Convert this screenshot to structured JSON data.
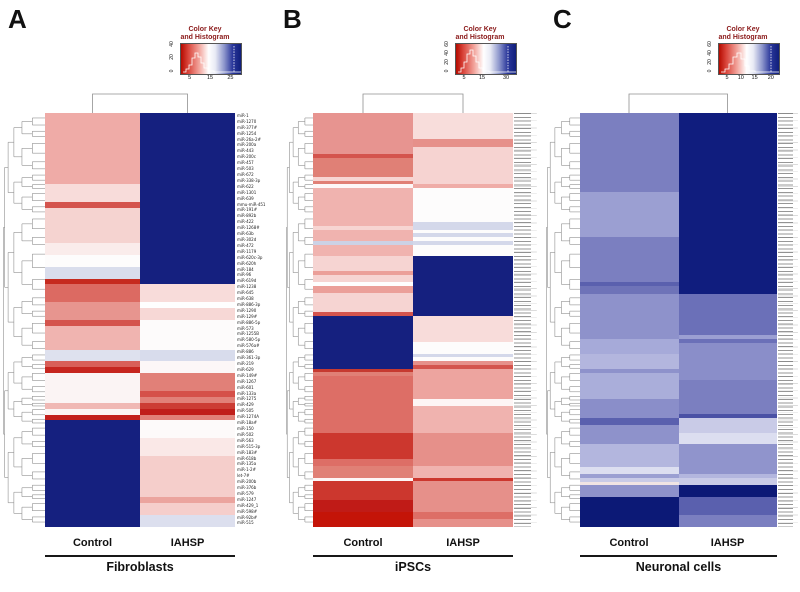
{
  "figure": {
    "background": "#ffffff",
    "scale_colors": [
      "#b50b00",
      "#ffffff",
      "#101f7b"
    ]
  },
  "chart_data": [
    {
      "type": "heatmap",
      "panel": "A",
      "group": "Fibroblasts",
      "columns": [
        "Control",
        "IAHSP"
      ],
      "color_key": {
        "title_line1": "Color Key",
        "title_line2": "and Histogram",
        "x_ticks": [
          "5",
          "15",
          "25"
        ],
        "y_ticks": [
          "0",
          "20",
          "40"
        ]
      },
      "row_count": 70,
      "row_labels_legible": true,
      "row_labels": [
        "miR-1",
        "miR-1270",
        "miR-377#",
        "miR-1254",
        "miR-26a-2#",
        "miR-200a",
        "miR-443",
        "miR-200c",
        "miR-457",
        "miR-503",
        "miR-672",
        "miR-338-3p",
        "miR-622",
        "miR-1301",
        "miR-639",
        "mmu-miR-451",
        "miR-191#",
        "miR-892b",
        "miR-422",
        "miR-1268#",
        "miR-63b",
        "miR-302d",
        "miR-472",
        "miR-1179",
        "miR-620c-3p",
        "miR-620h",
        "miR-184",
        "miR-96",
        "miR-619d",
        "miR-1238",
        "miR-645",
        "miR-638",
        "miR-886-3p",
        "miR-1290",
        "miR-129#",
        "miR-886-5p",
        "miR-573",
        "miR-1255B",
        "miR-580-5p",
        "miR-576a#",
        "miR-886",
        "miR-361-3p",
        "miR-219",
        "miR-629",
        "miR-149#",
        "miR-1267",
        "miR-601",
        "miR-133a",
        "miR-1275",
        "miR-429",
        "miR-505",
        "miR-1274A",
        "miR-18a#",
        "miR-150",
        "miR-502",
        "miR-563",
        "miR-515-3p",
        "miR-183#",
        "miR-618b",
        "miR-135a",
        "miR-1-2#",
        "let-7#",
        "miR-200b",
        "miR-376b",
        "miR-579",
        "miR-1247",
        "miR-429_1",
        "miR-598#",
        "miR-92b#",
        "miR-515"
      ],
      "blocks": [
        [
          12,
          "#efaba7",
          "#15207f"
        ],
        [
          3,
          "#f8dcda",
          "#15207f"
        ],
        [
          1,
          "#d4544d",
          "#15207f"
        ],
        [
          6,
          "#f5d3d0",
          "#15207f"
        ],
        [
          2,
          "#faeceb",
          "#15207f"
        ],
        [
          2,
          "#fdfcfc",
          "#15207f"
        ],
        [
          2,
          "#d9ddec",
          "#15207f"
        ],
        [
          1,
          "#c62a1f",
          "#15207f"
        ],
        [
          3,
          "#dc6a62",
          "#f8dcda"
        ],
        [
          1,
          "#e7958f",
          "#fefefe"
        ],
        [
          2,
          "#e7958f",
          "#f7d8d6"
        ],
        [
          1,
          "#d4544d",
          "#fdfbfb"
        ],
        [
          4,
          "#f0b4b0",
          "#fdfbfb"
        ],
        [
          2,
          "#dee1ee",
          "#d8dcec"
        ],
        [
          1,
          "#d95f58",
          "#fcf7f7"
        ],
        [
          1,
          "#c6261f",
          "#fcf7f7"
        ],
        [
          3,
          "#fbf4f4",
          "#e18078"
        ],
        [
          1,
          "#fbf4f4",
          "#d55049"
        ],
        [
          1,
          "#fbf4f4",
          "#e18078"
        ],
        [
          1,
          "#f0b8b4",
          "#cc3c34"
        ],
        [
          1,
          "#fbf4f4",
          "#c01e1a"
        ],
        [
          1,
          "#c21f1c",
          "#e18078"
        ],
        [
          3,
          "#15207f",
          "#fdfafa"
        ],
        [
          3,
          "#15207f",
          "#fae8e7"
        ],
        [
          7,
          "#15207f",
          "#f5cecb"
        ],
        [
          1,
          "#15207f",
          "#eba49e"
        ],
        [
          2,
          "#15207f",
          "#f5cecb"
        ],
        [
          2,
          "#15207f",
          "#dcdfee"
        ]
      ]
    },
    {
      "type": "heatmap",
      "panel": "B",
      "group": "iPSCs",
      "columns": [
        "Control",
        "IAHSP"
      ],
      "color_key": {
        "title_line1": "Color Key",
        "title_line2": "and Histogram",
        "x_ticks": [
          "5",
          "15",
          "30"
        ],
        "y_ticks": [
          "0",
          "20",
          "40",
          "60"
        ]
      },
      "row_count": 110,
      "row_labels_legible": false,
      "blocks": [
        [
          7,
          "#e79490",
          "#f8dddb"
        ],
        [
          2,
          "#e79490",
          "#e6908a"
        ],
        [
          2,
          "#e79490",
          "#f6d3d1"
        ],
        [
          1,
          "#d4544d",
          "#f6d3d1"
        ],
        [
          5,
          "#e08076",
          "#f6d3d1"
        ],
        [
          1,
          "#f7d5d2",
          "#f6d3d1"
        ],
        [
          1,
          "#e08076",
          "#f6d3d1"
        ],
        [
          1,
          "#fdf8f8",
          "#efaca7"
        ],
        [
          9,
          "#f0b3af",
          "#fdfcfc"
        ],
        [
          1,
          "#f0b3af",
          "#d4d8ea"
        ],
        [
          1,
          "#f7d5d2",
          "#d4d8ea"
        ],
        [
          1,
          "#f0b3af",
          "#fdfcfc"
        ],
        [
          1,
          "#f0b3af",
          "#d4d8ea"
        ],
        [
          1,
          "#f0b3af",
          "#fdfcfc"
        ],
        [
          1,
          "#ccd2e6",
          "#d4d8ea"
        ],
        [
          3,
          "#f0b3af",
          "#fdfcfc"
        ],
        [
          4,
          "#f6d4d2",
          "#15207f"
        ],
        [
          1,
          "#eb9f99",
          "#15207f"
        ],
        [
          2,
          "#f6d4d2",
          "#15207f"
        ],
        [
          1,
          "#fefefe",
          "#15207f"
        ],
        [
          2,
          "#eb9f99",
          "#15207f"
        ],
        [
          5,
          "#f6d4d2",
          "#15207f"
        ],
        [
          1,
          "#d4544d",
          "#15207f"
        ],
        [
          7,
          "#15207f",
          "#f8dcda"
        ],
        [
          3,
          "#15207f",
          "#fdfcfc"
        ],
        [
          1,
          "#15207f",
          "#d4d8ea"
        ],
        [
          1,
          "#15207f",
          "#fdfcfc"
        ],
        [
          1,
          "#15207f",
          "#e6908a"
        ],
        [
          1,
          "#15207f",
          "#d4544d"
        ],
        [
          1,
          "#c63a30",
          "#eda49f"
        ],
        [
          1,
          "#e08076",
          "#eda49f"
        ],
        [
          6,
          "#dd6e66",
          "#eda49f"
        ],
        [
          2,
          "#dd6e66",
          "#fdf5f5"
        ],
        [
          7,
          "#dd6e66",
          "#f0b3af"
        ],
        [
          7,
          "#cc372e",
          "#e6908a"
        ],
        [
          2,
          "#dd6e66",
          "#e6908a"
        ],
        [
          3,
          "#e08076",
          "#f0b3af"
        ],
        [
          1,
          "#fdf6f6",
          "#cc372e"
        ],
        [
          5,
          "#cc372e",
          "#e6908a"
        ],
        [
          3,
          "#c01b17",
          "#e6908a"
        ],
        [
          2,
          "#c41408",
          "#dd6e66"
        ],
        [
          2,
          "#c41408",
          "#e6908a"
        ]
      ]
    },
    {
      "type": "heatmap",
      "panel": "C",
      "group": "Neuronal cells",
      "columns": [
        "Control",
        "IAHSP"
      ],
      "color_key": {
        "title_line1": "Color Key",
        "title_line2": "and Histogram",
        "x_ticks": [
          "5",
          "10",
          "15",
          "20"
        ],
        "y_ticks": [
          "0",
          "20",
          "40",
          "60"
        ]
      },
      "row_count": 110,
      "row_labels_legible": false,
      "blocks": [
        [
          21,
          "#7b7fc0",
          "#101d7e"
        ],
        [
          12,
          "#9b9fd2",
          "#101d7e"
        ],
        [
          12,
          "#7b7fc0",
          "#101d7e"
        ],
        [
          1,
          "#5a60ae",
          "#101d7e"
        ],
        [
          2,
          "#6e73b8",
          "#101d7e"
        ],
        [
          11,
          "#8e92cb",
          "#6b70b8"
        ],
        [
          1,
          "#8e92cb",
          "#9b9fd2"
        ],
        [
          1,
          "#a6aad9",
          "#6b70b8"
        ],
        [
          3,
          "#a6aad9",
          "#8a8ec9"
        ],
        [
          4,
          "#b3b6de",
          "#8a8ec9"
        ],
        [
          1,
          "#8e92cb",
          "#8a8ec9"
        ],
        [
          2,
          "#aaaeda",
          "#8a8ec9"
        ],
        [
          5,
          "#aaaeda",
          "#7b7fc0"
        ],
        [
          4,
          "#8a8ec9",
          "#7b7fc0"
        ],
        [
          1,
          "#8a8ec9",
          "#4a51a5"
        ],
        [
          2,
          "#5a60ae",
          "#c9cbe7"
        ],
        [
          2,
          "#8e92cb",
          "#c9cbe7"
        ],
        [
          3,
          "#8e92cb",
          "#dcdef0"
        ],
        [
          6,
          "#b3b6de",
          "#9094cc"
        ],
        [
          2,
          "#dcdef0",
          "#9094cc"
        ],
        [
          1,
          "#9b9fd2",
          "#b3b6de"
        ],
        [
          1,
          "#c9cbe7",
          "#c9cbe7"
        ],
        [
          1,
          "#f0e4e4",
          "#c9cbe7"
        ],
        [
          3,
          "#8e92cb",
          "#0c1976"
        ],
        [
          5,
          "#0c1976",
          "#5a60ae"
        ],
        [
          3,
          "#0c1976",
          "#7b7fc0"
        ]
      ]
    }
  ]
}
